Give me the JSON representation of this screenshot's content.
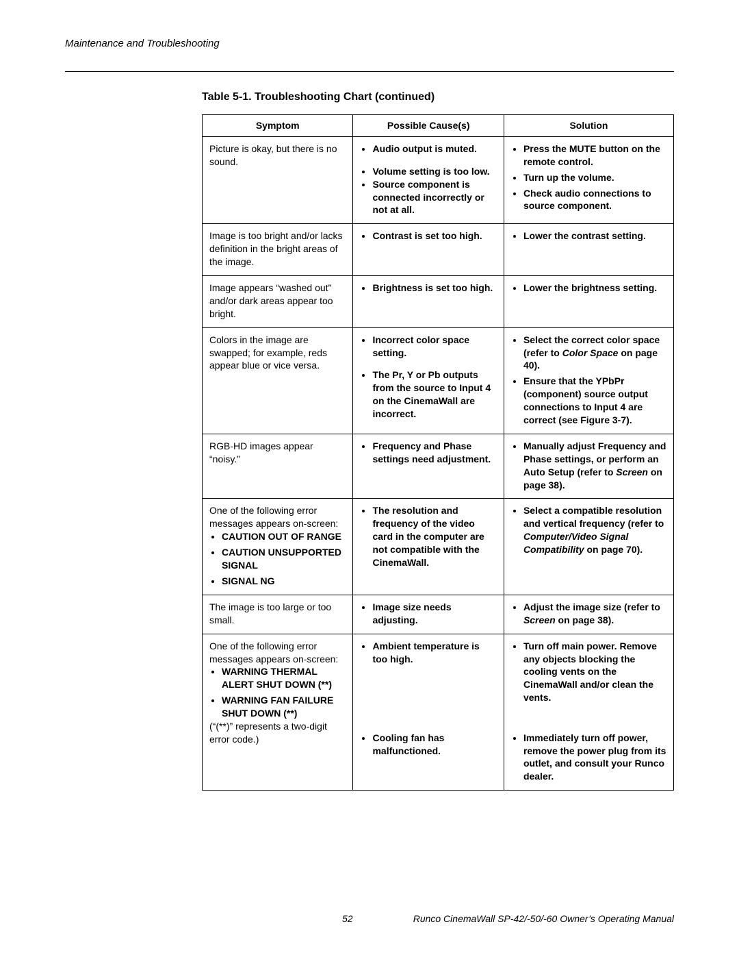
{
  "header": {
    "section": "Maintenance and Troubleshooting"
  },
  "table": {
    "title": "Table 5-1. Troubleshooting Chart (continued)",
    "headers": {
      "symptom": "Symptom",
      "causes": "Possible Cause(s)",
      "solution": "Solution"
    },
    "rows": {
      "r0": {
        "symptom": "Picture is okay, but there is no sound.",
        "causes": [
          "Audio output is muted.",
          "Volume setting is too low.",
          "Source component is connected incorrectly or not at all."
        ],
        "solutions_pre": "Press the ",
        "solutions_bold": "MUTE",
        "solutions_post": " button on the remote control.",
        "solutions2": "Turn up the volume.",
        "solutions3": "Check audio connections to source component."
      },
      "r1": {
        "symptom": "Image is too bright and/or lacks definition in the bright areas of the image.",
        "causes": [
          "Contrast is set too high."
        ],
        "solutions": [
          "Lower the contrast setting."
        ]
      },
      "r2": {
        "symptom": "Image appears “washed out” and/or dark areas appear too bright.",
        "causes": [
          "Brightness is set too high."
        ],
        "solutions": [
          "Lower the brightness setting."
        ]
      },
      "r3": {
        "symptom": "Colors in the image are swapped; for example, reds appear blue or vice versa.",
        "causes": [
          "Incorrect color space setting.",
          "The Pr, Y or Pb outputs from the source to Input 4 on the CinemaWall are incorrect."
        ],
        "sol1_pre": "Select the correct color space (refer to ",
        "sol1_bold": "Color Space",
        "sol1_post": " on page 40).",
        "sol2": "Ensure that the YPbPr (component) source output connections to Input 4 are correct (see Figure 3-7)."
      },
      "r4": {
        "symptom": "RGB-HD images appear “noisy.”",
        "causes": [
          "Frequency and Phase settings need adjustment."
        ],
        "sol_pre": "Manually adjust Frequency and Phase settings, or perform an Auto Setup (refer to ",
        "sol_bold": "Screen",
        "sol_post": " on page 38)."
      },
      "r5": {
        "symptom_intro": "One of the following error messages appears on-screen:",
        "symptom_items": [
          "CAUTION OUT OF RANGE",
          "CAUTION UNSUPPORTED SIGNAL",
          "SIGNAL NG"
        ],
        "causes": [
          "The resolution and frequency of the video card in the computer are not compatible with the CinemaWall."
        ],
        "sol_pre": "Select a compatible resolution and vertical frequency (refer to ",
        "sol_bold": "Computer/Video Signal Compatibility",
        "sol_post": " on page 70)."
      },
      "r6": {
        "symptom": "The image is too large or too small.",
        "causes": [
          "Image size needs adjusting."
        ],
        "sol_pre": "Adjust the image size (refer to ",
        "sol_bold": "Screen",
        "sol_post": " on page 38)."
      },
      "r7": {
        "symptom_intro": "One of the following error messages appears on-screen:",
        "symptom_items": [
          "WARNING THERMAL ALERT SHUT DOWN (**)",
          "WARNING FAN FAILURE SHUT DOWN (**)"
        ],
        "symptom_note": "(“(**)” represents a two-digit error code.)",
        "cause1": "Ambient temperature is too high.",
        "cause2": "Cooling fan has malfunctioned.",
        "sol1": "Turn off main power. Remove any objects blocking the cooling vents on the CinemaWall and/or clean the vents.",
        "sol2": "Immediately turn off power, remove the power plug from its outlet, and consult your Runco dealer."
      }
    }
  },
  "footer": {
    "page": "52",
    "doc": "Runco CinemaWall SP-42/-50/-60 Owner’s Operating Manual"
  }
}
